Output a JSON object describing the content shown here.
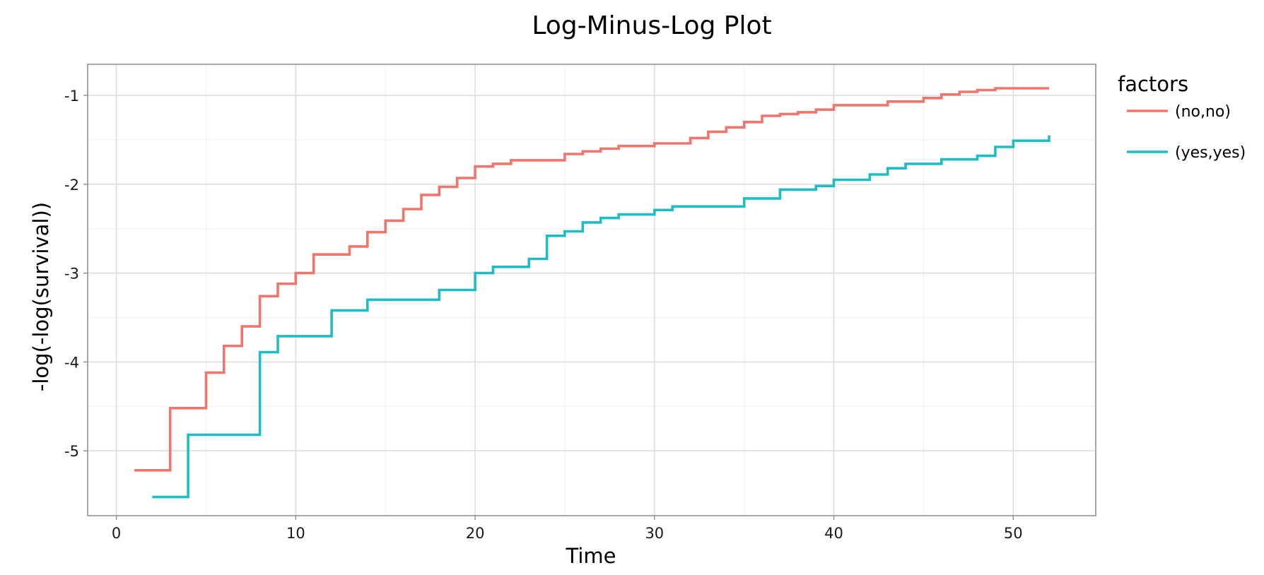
{
  "chart_data": {
    "type": "line",
    "title": "Log-Minus-Log Plot",
    "xlabel": "Time",
    "ylabel": "-log(-log(survival))",
    "xlim": [
      -1.6,
      54.6
    ],
    "ylim": [
      -5.73,
      -0.65
    ],
    "xticks": [
      0,
      10,
      20,
      30,
      40,
      50
    ],
    "yticks": [
      -5,
      -4,
      -3,
      -2,
      -1
    ],
    "xtick_labels": [
      "0",
      "10",
      "20",
      "30",
      "40",
      "50"
    ],
    "ytick_labels": [
      "-5",
      "-4",
      "-3",
      "-2",
      "-1"
    ],
    "grid": true,
    "step": "post",
    "legend": {
      "title": "factors",
      "position": "right"
    },
    "series": [
      {
        "name": "(no,no)",
        "color": "#F0766D",
        "x": [
          1,
          3,
          5,
          6,
          7,
          8,
          9,
          10,
          11,
          13,
          14,
          15,
          16,
          17,
          18,
          19,
          20,
          21,
          22,
          25,
          26,
          27,
          28,
          30,
          32,
          33,
          34,
          35,
          36,
          37,
          38,
          39,
          40,
          43,
          45,
          46,
          47,
          48,
          49,
          52
        ],
        "y": [
          -5.22,
          -4.52,
          -4.12,
          -3.82,
          -3.6,
          -3.26,
          -3.12,
          -3.0,
          -2.79,
          -2.7,
          -2.54,
          -2.41,
          -2.28,
          -2.12,
          -2.03,
          -1.93,
          -1.8,
          -1.77,
          -1.73,
          -1.66,
          -1.63,
          -1.6,
          -1.57,
          -1.54,
          -1.48,
          -1.41,
          -1.36,
          -1.3,
          -1.23,
          -1.21,
          -1.19,
          -1.16,
          -1.11,
          -1.07,
          -1.03,
          -0.99,
          -0.96,
          -0.94,
          -0.92,
          -0.92
        ]
      },
      {
        "name": "(yes,yes)",
        "color": "#1FBDC3",
        "x": [
          2,
          4,
          8,
          9,
          12,
          14,
          18,
          20,
          21,
          23,
          24,
          25,
          26,
          27,
          28,
          30,
          31,
          35,
          37,
          39,
          40,
          42,
          43,
          44,
          46,
          48,
          49,
          50,
          52
        ],
        "y": [
          -5.52,
          -4.82,
          -3.89,
          -3.71,
          -3.42,
          -3.3,
          -3.19,
          -3.0,
          -2.93,
          -2.84,
          -2.58,
          -2.53,
          -2.43,
          -2.38,
          -2.34,
          -2.29,
          -2.25,
          -2.16,
          -2.06,
          -2.02,
          -1.95,
          -1.89,
          -1.82,
          -1.77,
          -1.72,
          -1.68,
          -1.58,
          -1.51,
          -1.45
        ]
      }
    ]
  }
}
